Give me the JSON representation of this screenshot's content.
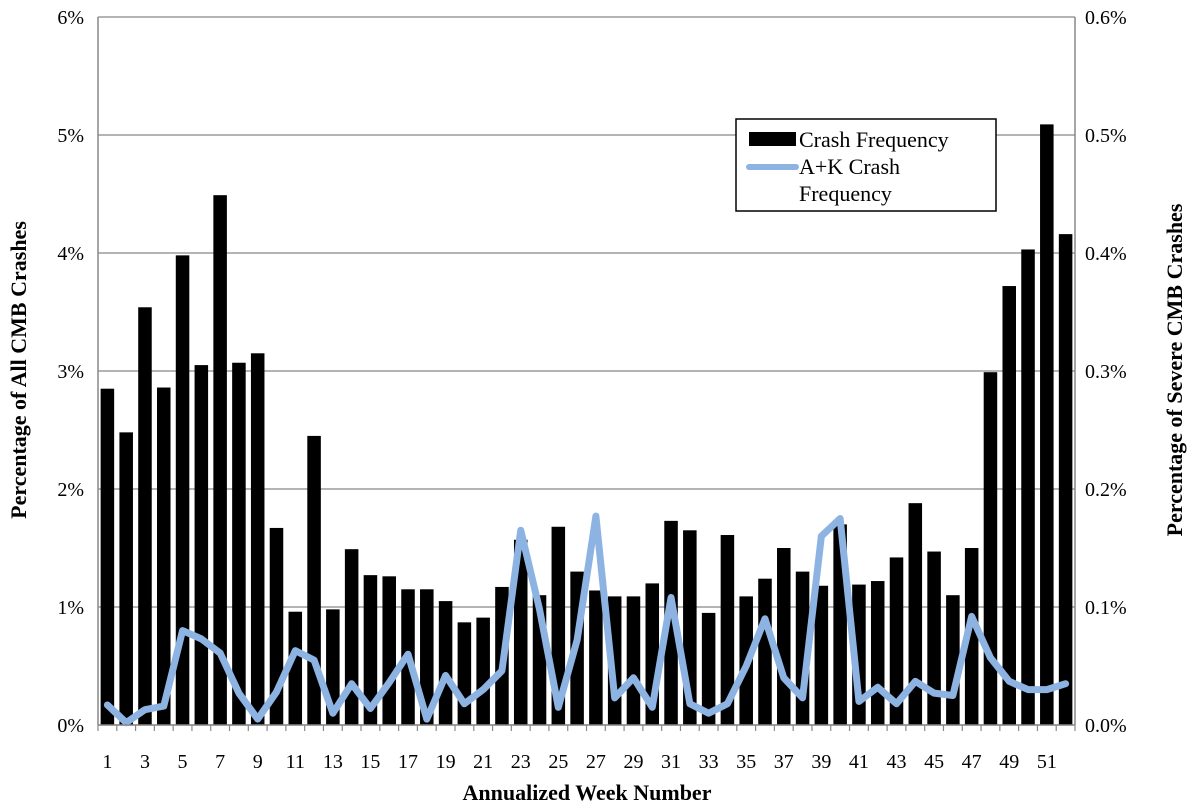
{
  "chart_data": {
    "type": "bar",
    "title": "",
    "xlabel": "Annualized Week Number",
    "ylabel": "Percentage of All CMB Crashes",
    "y2label": "Percentage of Severe CMB Crashes",
    "ylim": [
      0,
      6
    ],
    "y2lim": [
      0,
      0.6
    ],
    "yticks": [
      "0%",
      "1%",
      "2%",
      "3%",
      "4%",
      "5%",
      "6%"
    ],
    "y2ticks": [
      "0.0%",
      "0.1%",
      "0.2%",
      "0.3%",
      "0.4%",
      "0.5%",
      "0.6%"
    ],
    "xtick_labels": [
      "1",
      "3",
      "5",
      "7",
      "9",
      "11",
      "13",
      "15",
      "17",
      "19",
      "21",
      "23",
      "25",
      "27",
      "29",
      "31",
      "33",
      "35",
      "37",
      "39",
      "41",
      "43",
      "45",
      "47",
      "49",
      "51"
    ],
    "grid": true,
    "legend_position": "top-right",
    "categories": [
      1,
      2,
      3,
      4,
      5,
      6,
      7,
      8,
      9,
      10,
      11,
      12,
      13,
      14,
      15,
      16,
      17,
      18,
      19,
      20,
      21,
      22,
      23,
      24,
      25,
      26,
      27,
      28,
      29,
      30,
      31,
      32,
      33,
      34,
      35,
      36,
      37,
      38,
      39,
      40,
      41,
      42,
      43,
      44,
      45,
      46,
      47,
      48,
      49,
      50,
      51,
      52
    ],
    "series": [
      {
        "name": "Crash Frequency",
        "axis": "left",
        "kind": "bar",
        "color": "#000000",
        "values": [
          2.85,
          2.48,
          3.54,
          2.86,
          3.98,
          3.05,
          4.49,
          3.07,
          3.15,
          1.67,
          0.96,
          2.45,
          0.98,
          1.49,
          1.27,
          1.26,
          1.15,
          1.15,
          1.05,
          0.87,
          0.91,
          1.17,
          1.57,
          1.1,
          1.68,
          1.3,
          1.14,
          1.09,
          1.09,
          1.2,
          1.73,
          1.65,
          0.95,
          1.61,
          1.09,
          1.24,
          1.5,
          1.3,
          1.18,
          1.7,
          1.19,
          1.22,
          1.42,
          1.88,
          1.47,
          1.1,
          1.5,
          2.99,
          3.72,
          4.03,
          5.09,
          4.16
        ]
      },
      {
        "name": "A+K Crash Frequency",
        "axis": "right",
        "kind": "line",
        "color": "#8db3e2",
        "values": [
          0.017,
          0.002,
          0.013,
          0.016,
          0.08,
          0.073,
          0.061,
          0.027,
          0.005,
          0.028,
          0.063,
          0.055,
          0.01,
          0.035,
          0.014,
          0.036,
          0.06,
          0.005,
          0.042,
          0.018,
          0.03,
          0.046,
          0.165,
          0.098,
          0.015,
          0.072,
          0.177,
          0.023,
          0.04,
          0.015,
          0.108,
          0.018,
          0.01,
          0.018,
          0.05,
          0.09,
          0.04,
          0.023,
          0.16,
          0.175,
          0.02,
          0.032,
          0.018,
          0.037,
          0.027,
          0.025,
          0.092,
          0.057,
          0.037,
          0.03,
          0.03,
          0.035
        ]
      }
    ]
  }
}
